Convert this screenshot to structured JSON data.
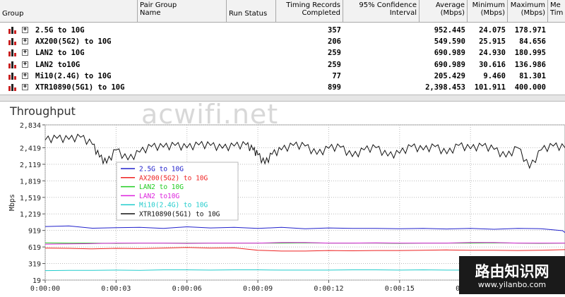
{
  "table": {
    "headers": {
      "group": "Group",
      "pair_group_name": "Pair Group\nName",
      "run_status": "Run Status",
      "timing_records": "Timing Records\nCompleted",
      "confidence": "95% Confidence\nInterval",
      "average": "Average\n(Mbps)",
      "minimum": "Minimum\n(Mbps)",
      "maximum": "Maximum\n(Mbps)",
      "measured_time": "Me\nTim"
    },
    "rows": [
      {
        "group": "2.5G to 10G",
        "records": "357",
        "average": "952.445",
        "minimum": "24.075",
        "maximum": "178.971"
      },
      {
        "group": "AX200(5G2) to 10G",
        "records": "206",
        "average": "549.590",
        "minimum": "25.915",
        "maximum": "84.656"
      },
      {
        "group": "LAN2 to 10G",
        "records": "259",
        "average": "690.989",
        "minimum": "24.930",
        "maximum": "180.995"
      },
      {
        "group": "LAN2 to10G",
        "records": "259",
        "average": "690.989",
        "minimum": "30.616",
        "maximum": "136.986"
      },
      {
        "group": "Mi10(2.4G) to 10G",
        "records": "77",
        "average": "205.429",
        "minimum": "9.460",
        "maximum": "81.301"
      },
      {
        "group": "XTR10890(5G1) to 10G",
        "records": "899",
        "average": "2,398.453",
        "minimum": "101.911",
        "maximum": "400.000"
      }
    ]
  },
  "watermarks": {
    "top": "acwifi.net",
    "bottom_cn": "路由知识网",
    "bottom_url": "www.yilanbo.com"
  },
  "chart_data": {
    "type": "line",
    "title": "Throughput",
    "ylabel": "Mbps",
    "xlabel": "",
    "ylim": [
      19,
      2834
    ],
    "xlim_seconds": [
      0,
      22
    ],
    "yticks": [
      "2,834",
      "2,419",
      "2,119",
      "1,819",
      "1,519",
      "1,219",
      "919",
      "619",
      "319",
      "19"
    ],
    "ytick_values": [
      2834,
      2419,
      2119,
      1819,
      1519,
      1219,
      919,
      619,
      319,
      19
    ],
    "xticks": [
      "0:00:00",
      "0:00:03",
      "0:00:06",
      "0:00:09",
      "0:00:12",
      "0:00:15",
      "0:00:18"
    ],
    "xtick_values": [
      0,
      3,
      6,
      9,
      12,
      15,
      18
    ],
    "grid": true,
    "legend_position": "upper-left",
    "series": [
      {
        "name": "2.5G to 10G",
        "color": "#2222cc",
        "x": [
          0,
          1,
          2,
          3,
          4,
          5,
          6,
          7,
          8,
          9,
          10,
          11,
          12,
          13,
          14,
          15,
          16,
          17,
          18,
          19,
          20,
          21,
          21.9,
          22
        ],
        "y": [
          990,
          1000,
          960,
          970,
          975,
          955,
          985,
          965,
          975,
          955,
          975,
          950,
          965,
          955,
          955,
          950,
          955,
          945,
          955,
          940,
          955,
          950,
          915,
          880
        ]
      },
      {
        "name": "AX200(5G2) to 10G",
        "color": "#ee2222",
        "x": [
          0,
          1,
          2,
          3,
          4,
          5,
          6,
          7,
          8,
          9,
          10,
          11,
          12,
          13,
          14,
          15,
          16,
          17,
          18,
          19,
          20,
          21,
          22
        ],
        "y": [
          600,
          595,
          585,
          595,
          590,
          600,
          610,
          600,
          605,
          560,
          545,
          545,
          555,
          550,
          555,
          555,
          560,
          565,
          560,
          560,
          555,
          560,
          570
        ]
      },
      {
        "name": "LAN2 to 10G",
        "color": "#22cc22",
        "x": [
          0,
          1,
          2,
          3,
          4,
          5,
          6,
          7,
          8,
          9,
          10,
          11,
          12,
          13,
          14,
          15,
          16,
          17,
          18,
          19,
          20,
          21,
          22
        ],
        "y": [
          695,
          690,
          690,
          685,
          690,
          690,
          690,
          690,
          690,
          690,
          690,
          695,
          690,
          690,
          690,
          685,
          690,
          690,
          690,
          695,
          690,
          685,
          690
        ]
      },
      {
        "name": "LAN2 to10G",
        "color": "#dd22dd",
        "x": [
          0,
          1,
          2,
          3,
          4,
          5,
          6,
          7,
          8,
          9,
          10,
          11,
          12,
          13,
          14,
          15,
          16,
          17,
          18,
          19,
          20,
          21,
          22
        ],
        "y": [
          670,
          675,
          680,
          690,
          690,
          690,
          685,
          690,
          690,
          690,
          700,
          700,
          690,
          690,
          695,
          690,
          690,
          690,
          700,
          700,
          690,
          690,
          690
        ]
      },
      {
        "name": "Mi10(2.4G) to 10G",
        "color": "#22cccc",
        "x": [
          0,
          1,
          2,
          3,
          4,
          5,
          6,
          7,
          8,
          9,
          10,
          11,
          12,
          13,
          14,
          15,
          16,
          17,
          18,
          19,
          20,
          21,
          22
        ],
        "y": [
          190,
          195,
          195,
          200,
          195,
          205,
          205,
          200,
          205,
          205,
          200,
          200,
          200,
          205,
          205,
          200,
          205,
          200,
          200,
          200,
          205,
          200,
          200
        ]
      },
      {
        "name": "XTR10890(5G1) to 10G",
        "color": "#111111",
        "x": [
          0,
          0.5,
          1,
          1.5,
          2,
          2.3,
          2.6,
          3,
          3.5,
          4,
          4.5,
          5,
          5.5,
          6,
          6.5,
          7,
          7.5,
          8,
          8.5,
          8.8,
          9,
          9.3,
          9.6,
          10,
          10.5,
          11,
          11.5,
          12,
          12.5,
          13,
          13.5,
          14,
          14.5,
          15,
          15.5,
          16,
          16.5,
          17,
          17.5,
          18,
          18.5,
          19,
          19.5,
          20,
          20.5,
          21,
          21.5,
          22
        ],
        "y": [
          2560,
          2590,
          2570,
          2610,
          2480,
          2250,
          2140,
          2380,
          2200,
          2340,
          2440,
          2430,
          2460,
          2420,
          2470,
          2460,
          2410,
          2450,
          2470,
          2380,
          2290,
          2130,
          2300,
          2380,
          2460,
          2450,
          2300,
          2410,
          2430,
          2260,
          2380,
          2420,
          2270,
          2320,
          2440,
          2380,
          2440,
          2310,
          2460,
          2400,
          2450,
          2390,
          2250,
          2420,
          2050,
          2380,
          2450,
          2420
        ]
      }
    ]
  }
}
